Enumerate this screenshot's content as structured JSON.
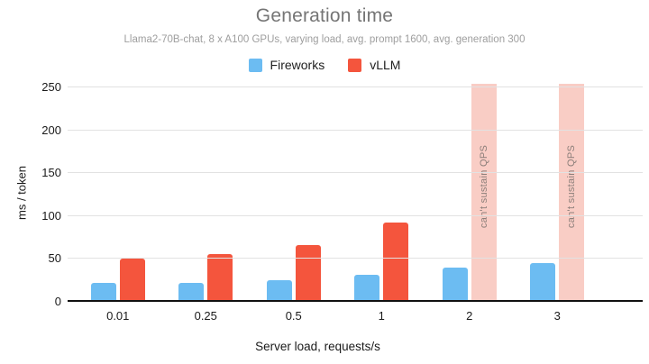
{
  "chart_data": {
    "type": "bar",
    "title": "Generation time",
    "subtitle": "Llama2-70B-chat, 8 x A100 GPUs, varying load, avg. prompt 1600, avg. generation 300",
    "xlabel": "Server load, requests/s",
    "ylabel": "ms / token",
    "categories": [
      "0.01",
      "0.25",
      "0.5",
      "1",
      "2",
      "3"
    ],
    "series": [
      {
        "name": "Fireworks",
        "color": "#6CBCF2",
        "values": [
          22,
          22,
          25,
          32,
          40,
          45
        ]
      },
      {
        "name": "vLLM",
        "color": "#F4553D",
        "values": [
          50,
          56,
          66,
          92,
          null,
          null
        ]
      }
    ],
    "unsustainable": {
      "label": "can't sustain QPS",
      "categories": [
        "2",
        "3"
      ],
      "fill_color": "#F9CDC5",
      "text_color": "#8B7E79"
    },
    "ylim": [
      0,
      250
    ],
    "yticks": [
      0,
      50,
      100,
      150,
      200,
      250
    ],
    "grid": true,
    "legend_position": "top"
  }
}
